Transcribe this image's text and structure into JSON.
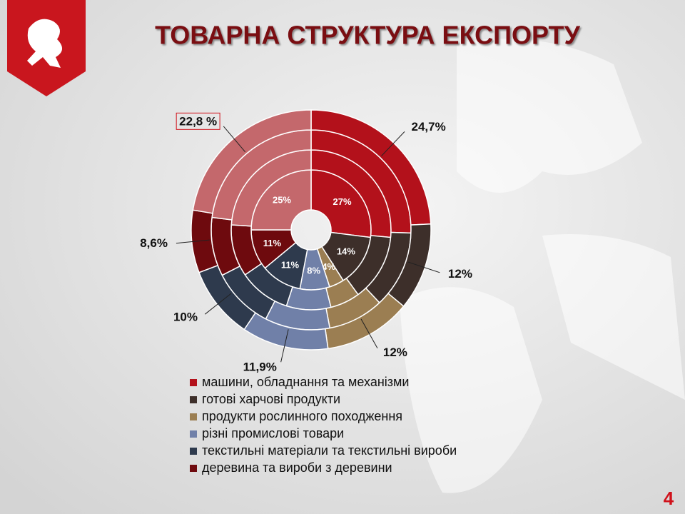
{
  "slide_number": 4,
  "chart_data": {
    "type": "donut",
    "title": "ТОВАРНА СТРУКТУРА ЕКСПОРТУ",
    "categories": [
      "машини, обладнання та механізми",
      "готові харчові продукти",
      "продукти рослинного походження",
      "різні промислові товари",
      "текстильні матеріали та текстильні вироби",
      "деревина та вироби з деревини",
      null
    ],
    "colors": [
      "#b3111b",
      "#3d2f2a",
      "#9b7e52",
      "#7080a8",
      "#2e3a4d",
      "#6e0a0e",
      "#c4686c"
    ],
    "series": [
      {
        "values": [
          27,
          14,
          4,
          8,
          11,
          11,
          25
        ],
        "value_labels": [
          "27%",
          "14%",
          "4%",
          "8%",
          "11%",
          "11%",
          "25%"
        ]
      },
      {
        "values": [
          26.5,
          13.5,
          6,
          9,
          10.5,
          10.5,
          24
        ]
      },
      {
        "values": [
          25.5,
          12.5,
          9,
          10.5,
          10,
          9.5,
          23
        ]
      },
      {
        "values": [
          24.7,
          12,
          12,
          11.9,
          10,
          8.6,
          22.8
        ],
        "value_labels": [
          "24,7%",
          "12%",
          "12%",
          "11,9%",
          "10%",
          "8,6%",
          "22,8 %"
        ]
      }
    ],
    "legend": "bottom"
  }
}
